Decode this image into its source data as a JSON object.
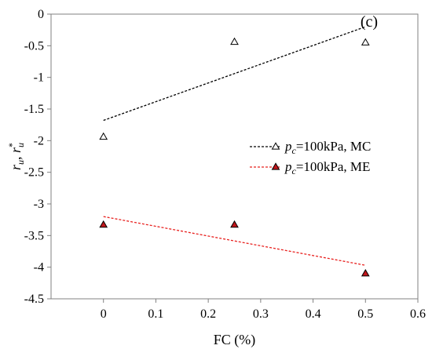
{
  "chart_data": {
    "type": "scatter",
    "annotation": "(c)",
    "xlabel": "FC (%)",
    "ylabel": {
      "main": "r",
      "sub1": "u",
      "sep": ", ",
      "main2": "r",
      "sup2": "*",
      "sub2": "u"
    },
    "xlim": [
      -0.1,
      0.6
    ],
    "ylim": [
      -4.5,
      0
    ],
    "x_ticks": [
      "0",
      "0.1",
      "0.2",
      "0.3",
      "0.4",
      "0.5",
      "0.6"
    ],
    "x_tick_values": [
      0,
      0.1,
      0.2,
      0.3,
      0.4,
      0.5,
      0.6
    ],
    "y_ticks": [
      "0",
      "-0.5",
      "-1",
      "-1.5",
      "-2",
      "-2.5",
      "-3",
      "-3.5",
      "-4",
      "-4.5"
    ],
    "y_tick_values": [
      0,
      -0.5,
      -1,
      -1.5,
      -2,
      -2.5,
      -3,
      -3.5,
      -4,
      -4.5
    ],
    "grid": false,
    "legend_position": "right-middle",
    "series": [
      {
        "name": "pc=100kPa, MC",
        "legend_parts": {
          "italic": "p",
          "sub": "c",
          "rest": "=100kPa, MC"
        },
        "marker": "triangle-open",
        "marker_color": "#000000",
        "line_color": "#000000",
        "points": [
          {
            "x": 0,
            "y": -1.94
          },
          {
            "x": 0.25,
            "y": -0.44
          },
          {
            "x": 0.5,
            "y": -0.45
          }
        ],
        "trendline": [
          {
            "x": 0,
            "y": -1.68
          },
          {
            "x": 0.5,
            "y": -0.2
          }
        ]
      },
      {
        "name": "pc=100kPa, ME",
        "legend_parts": {
          "italic": "p",
          "sub": "c",
          "rest": "=100kPa, ME"
        },
        "marker": "triangle-filled",
        "marker_color": "#c0151b",
        "line_color": "#e8201e",
        "points": [
          {
            "x": 0,
            "y": -3.33
          },
          {
            "x": 0.25,
            "y": -3.33
          },
          {
            "x": 0.5,
            "y": -4.1
          }
        ],
        "trendline": [
          {
            "x": 0,
            "y": -3.2
          },
          {
            "x": 0.5,
            "y": -3.97
          }
        ]
      }
    ]
  }
}
